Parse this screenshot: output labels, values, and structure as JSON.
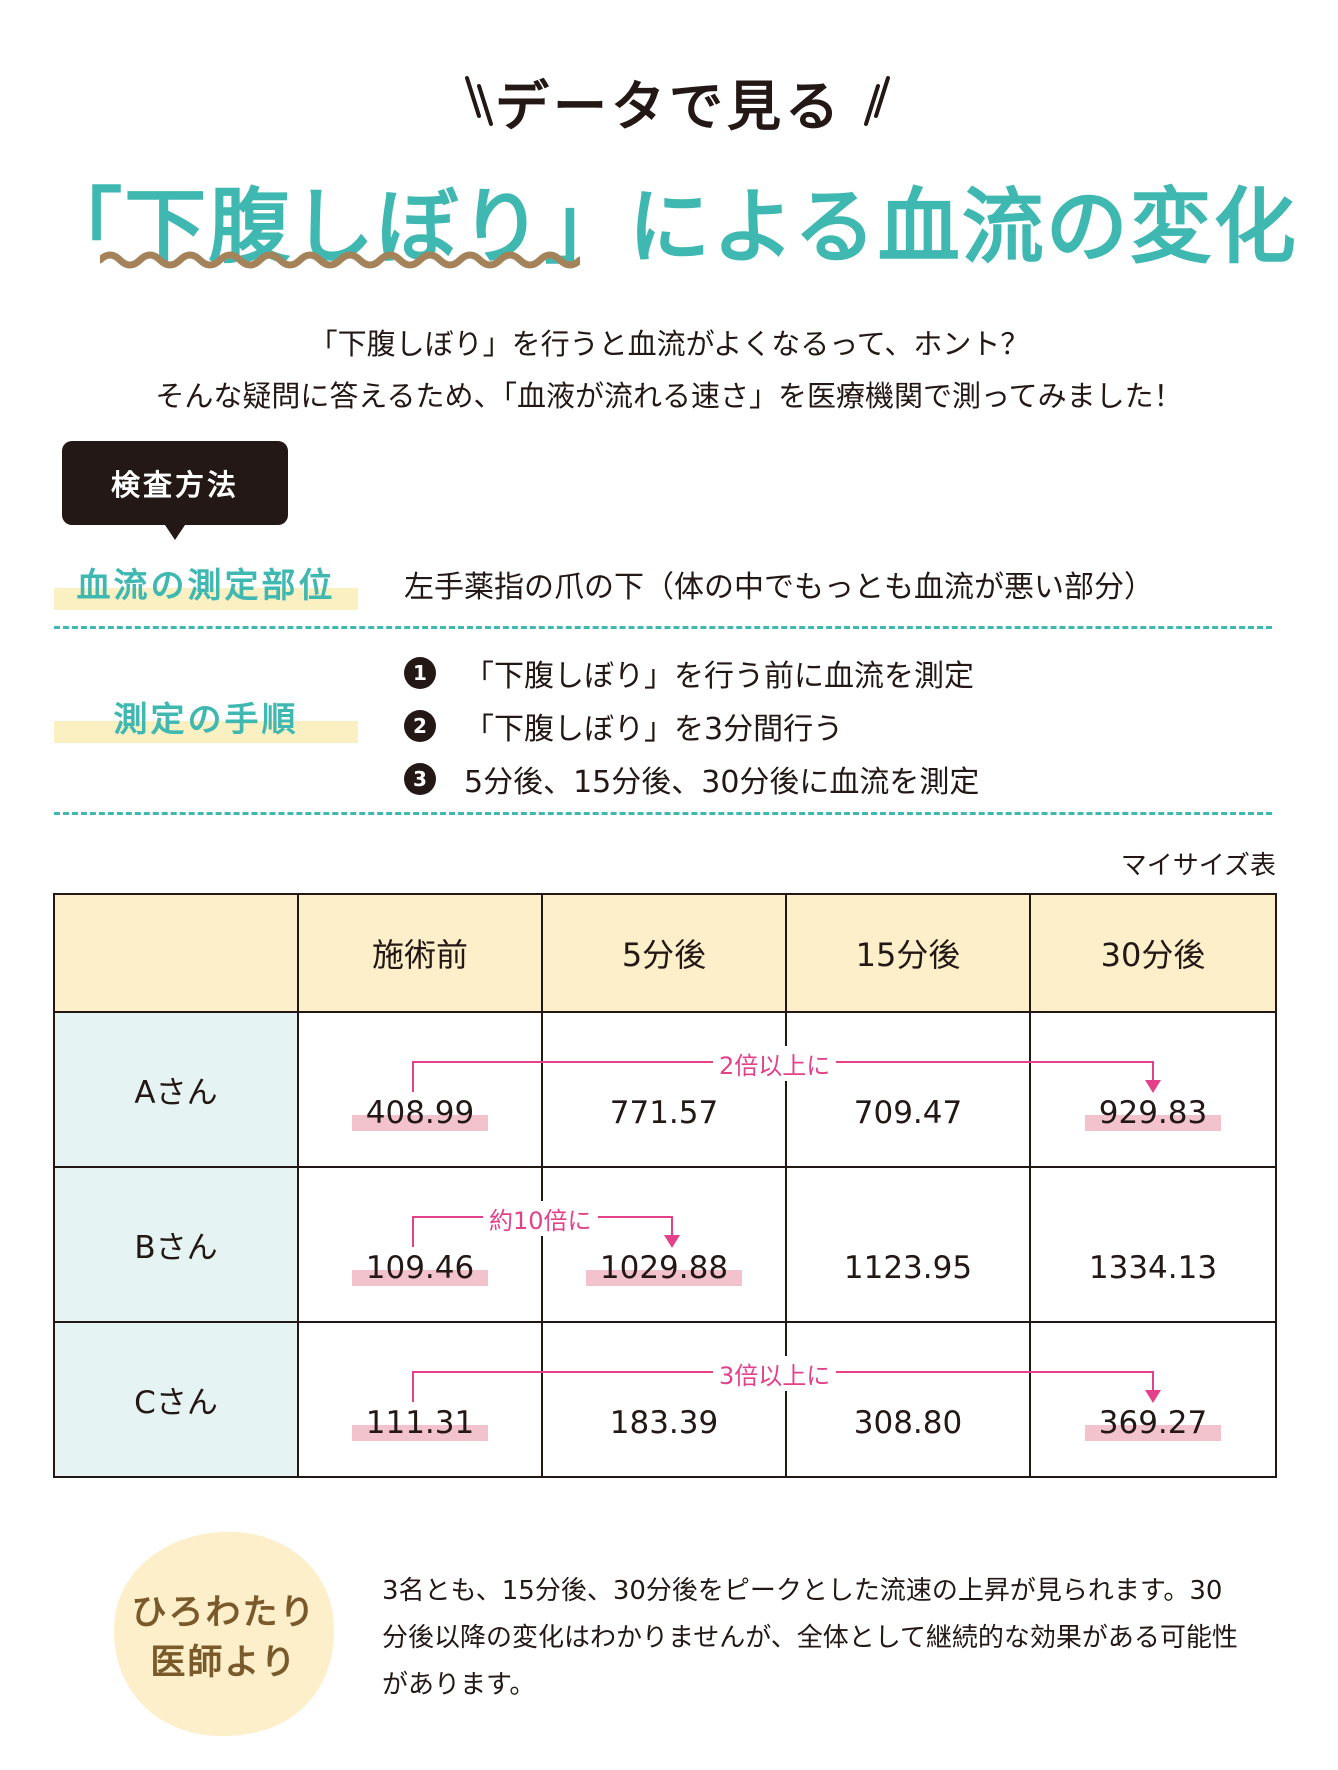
{
  "header": {
    "eyebrow": "データで見る",
    "title": "「下腹しぼり」による血流の変化"
  },
  "intro": {
    "line1": "「下腹しぼり」を行うと血流がよくなるって、ホント？",
    "line2": "そんな疑問に答えるため、「血液が流れる速さ」を医療機関で測ってみました！"
  },
  "method": {
    "badge": "検査方法",
    "site_label": "血流の測定部位",
    "site_text": "左手薬指の爪の下（体の中でもっとも血流が悪い部分）",
    "procedure_label": "測定の手順",
    "steps": [
      {
        "num": "1",
        "text": "「下腹しぼり」を行う前に血流を測定"
      },
      {
        "num": "2",
        "text": "「下腹しぼり」を3分間行う"
      },
      {
        "num": "3",
        "text": "5分後、15分後、30分後に血流を測定"
      }
    ]
  },
  "table": {
    "caption": "マイサイズ表",
    "headers": [
      "",
      "施術前",
      "5分後",
      "15分後",
      "30分後"
    ],
    "rows": [
      {
        "name": "Aさん",
        "values": [
          "408.99",
          "771.57",
          "709.47",
          "929.83"
        ]
      },
      {
        "name": "Bさん",
        "values": [
          "109.46",
          "1029.88",
          "1123.95",
          "1334.13"
        ]
      },
      {
        "name": "Cさん",
        "values": [
          "111.31",
          "183.39",
          "308.80",
          "369.27"
        ]
      }
    ],
    "annotations": {
      "a": "2倍以上に",
      "b": "約10倍に",
      "c": "3倍以上に"
    }
  },
  "doctor": {
    "name_line1": "ひろわたり",
    "name_line2": "医師より",
    "comment": "3名とも、15分後、30分後をピークとした流速の上昇が見られます。30分後以降の変化はわかりませんが、全体として継続的な効果がある可能性があります。"
  },
  "colors": {
    "teal": "#3fb8b1",
    "pink": "#e4418a",
    "highlight_pink": "#f3c3cd",
    "header_yellow": "#fcefca",
    "row_blue": "#e5f3f2",
    "label_yellow": "#fbf0c2"
  }
}
